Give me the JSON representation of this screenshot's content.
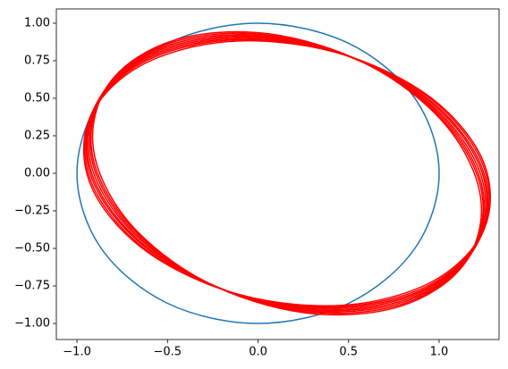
{
  "chart_data": {
    "type": "line",
    "xlim": [
      -1.114,
      1.331
    ],
    "ylim": [
      -1.107,
      1.095
    ],
    "xticks": [
      {
        "value": -1.0,
        "label": "−1.0"
      },
      {
        "value": -0.5,
        "label": "−0.5"
      },
      {
        "value": 0,
        "label": "0.0"
      },
      {
        "value": 0.5,
        "label": "0.5"
      },
      {
        "value": 1.0,
        "label": "1.0"
      }
    ],
    "yticks": [
      {
        "value": -1.0,
        "label": "−1.00"
      },
      {
        "value": -0.75,
        "label": "−0.75"
      },
      {
        "value": -0.5,
        "label": "−0.50"
      },
      {
        "value": -0.25,
        "label": "−0.25"
      },
      {
        "value": 0,
        "label": "0.00"
      },
      {
        "value": 0.25,
        "label": "0.25"
      },
      {
        "value": 0.5,
        "label": "0.50"
      },
      {
        "value": 0.75,
        "label": "0.75"
      },
      {
        "value": 1.0,
        "label": "1.00"
      }
    ],
    "series": [
      {
        "color": "#1f77b4",
        "x": [
          1,
          0.866,
          0.5,
          0,
          -0.5,
          -0.866,
          -1,
          -0.866,
          -0.5,
          0,
          0.5,
          0.866
        ],
        "values": [
          0,
          0.5,
          0.866,
          1,
          0.866,
          0.5,
          0,
          -0.5,
          -0.866,
          -1,
          -0.866,
          -0.5
        ]
      },
      {
        "color": "#ff0000",
        "x": [
          1.254,
          1.238,
          0.934,
          0.423,
          -0.16,
          -0.656,
          -0.934,
          -0.918,
          -0.614,
          -0.103,
          0.48,
          0.976
        ],
        "values": [
          -0.355,
          0.096,
          0.522,
          0.808,
          0.878,
          0.712,
          0.355,
          -0.096,
          -0.522,
          -0.808,
          -0.878,
          -0.712
        ]
      },
      {
        "color": "#ff0000",
        "x": [
          1.241,
          1.241,
          0.953,
          0.451,
          -0.129,
          -0.631,
          -0.921,
          -0.921,
          -0.633,
          -0.131,
          0.449,
          0.951
        ],
        "values": [
          -0.393,
          0.059,
          0.495,
          0.799,
          0.889,
          0.741,
          0.393,
          -0.059,
          -0.495,
          -0.799,
          -0.889,
          -0.741
        ]
      },
      {
        "color": "#ff0000",
        "x": [
          1.226,
          1.242,
          0.969,
          0.479,
          -0.097,
          -0.604,
          -0.906,
          -0.922,
          -0.649,
          -0.159,
          0.417,
          0.924
        ],
        "values": [
          -0.431,
          0.02,
          0.466,
          0.788,
          0.898,
          0.768,
          0.431,
          -0.02,
          -0.466,
          -0.788,
          -0.898,
          -0.768
        ]
      },
      {
        "color": "#ff0000",
        "x": [
          1.211,
          1.243,
          0.986,
          0.506,
          -0.066,
          -0.577,
          -0.891,
          -0.923,
          -0.666,
          -0.186,
          0.386,
          0.897
        ],
        "values": [
          -0.468,
          -0.017,
          0.439,
          0.777,
          0.907,
          0.793,
          0.468,
          0.017,
          -0.439,
          -0.777,
          -0.907,
          -0.793
        ]
      },
      {
        "color": "#ff0000",
        "x": [
          1.194,
          1.241,
          0.999,
          0.532,
          -0.035,
          -0.549,
          -0.874,
          -0.921,
          -0.679,
          -0.212,
          0.355,
          0.869
        ],
        "values": [
          -0.504,
          -0.054,
          0.41,
          0.764,
          0.914,
          0.818,
          0.504,
          0.054,
          -0.41,
          -0.764,
          -0.914,
          -0.818
        ]
      },
      {
        "color": "#ff0000",
        "x": [
          1.175,
          1.238,
          1.013,
          0.559,
          -0.003,
          -0.52,
          -0.855,
          -0.918,
          -0.693,
          -0.239,
          0.323,
          0.84
        ],
        "values": [
          -0.539,
          -0.092,
          0.38,
          0.751,
          0.92,
          0.842,
          0.539,
          0.092,
          -0.38,
          -0.751,
          -0.92,
          -0.842
        ]
      },
      {
        "color": "#ff0000",
        "x": [
          1.156,
          1.236,
          1.026,
          0.585,
          0.03,
          -0.49,
          -0.836,
          -0.916,
          -0.706,
          -0.265,
          0.29,
          0.81
        ],
        "values": [
          -0.575,
          -0.13,
          0.349,
          0.736,
          0.925,
          0.866,
          0.575,
          0.13,
          -0.349,
          -0.736,
          -0.925,
          -0.866
        ]
      },
      {
        "color": "#ff0000",
        "x": [
          1.135,
          1.23,
          1.038,
          0.611,
          0.062,
          -0.46,
          -0.815,
          -0.91,
          -0.718,
          -0.291,
          0.258,
          0.78
        ],
        "values": [
          -0.61,
          -0.168,
          0.319,
          0.721,
          0.929,
          0.888,
          0.61,
          0.168,
          -0.319,
          -0.721,
          -0.929,
          -0.888
        ]
      }
    ]
  }
}
